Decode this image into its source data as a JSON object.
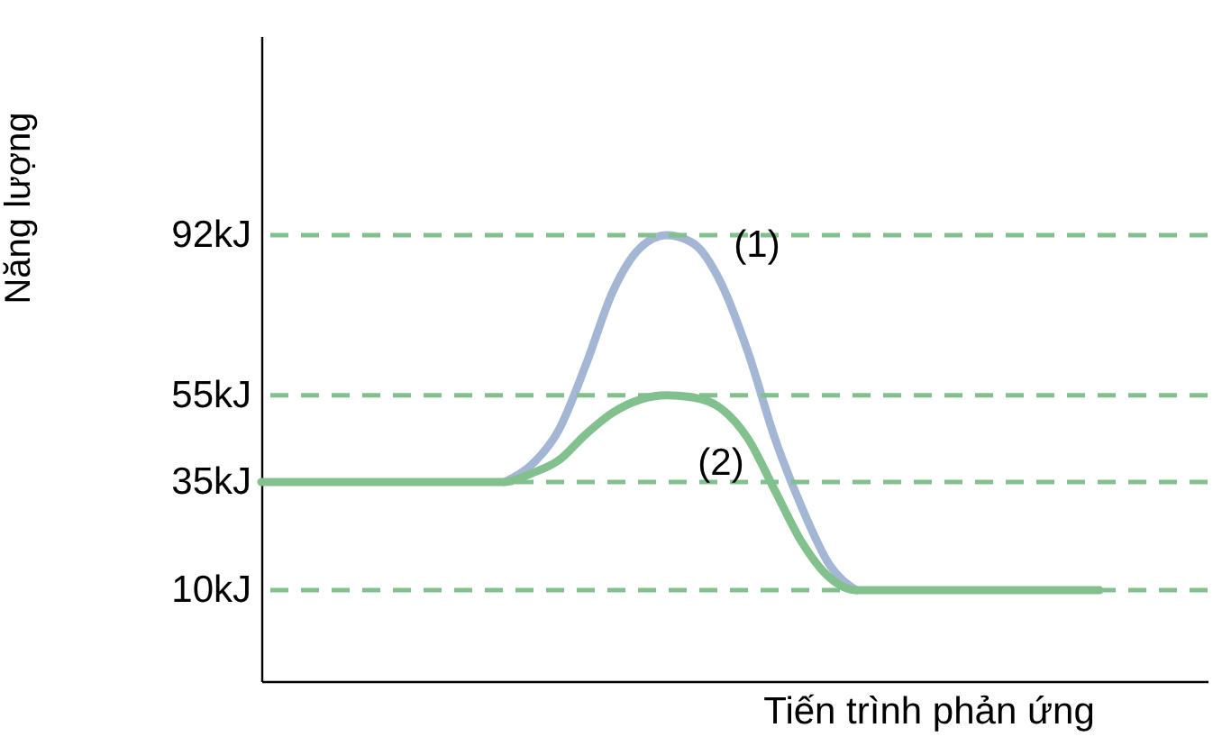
{
  "chart_data": {
    "type": "line",
    "xlabel": "Tiến trình phản ứng",
    "ylabel": "Năng lượng",
    "categories": [
      null,
      null,
      null,
      null,
      null,
      null,
      null,
      null,
      null,
      null,
      null,
      null,
      null,
      null,
      null,
      null,
      null,
      null,
      null,
      null,
      null,
      null,
      null,
      null,
      null,
      null,
      null,
      null,
      null,
      null,
      null,
      null,
      null,
      null,
      null,
      null
    ],
    "series": [
      {
        "name": "(1)",
        "color": "#a3b6d3",
        "values": [
          null,
          null,
          null,
          null,
          null,
          null,
          null,
          null,
          null,
          35,
          39,
          47,
          62,
          79,
          89,
          92,
          90,
          81,
          65,
          45,
          29,
          16,
          10,
          null,
          null,
          null,
          null,
          null,
          null,
          null,
          null,
          null,
          null,
          null,
          null,
          null
        ]
      },
      {
        "name": "(2)",
        "color": "#82c08e",
        "values": [
          35,
          35,
          35,
          35,
          35,
          35,
          35,
          35,
          35,
          35,
          37,
          40,
          46,
          51,
          54,
          55,
          54.5,
          52,
          45,
          33,
          21,
          13,
          10,
          10,
          10,
          10,
          10,
          10,
          10,
          10,
          10,
          10,
          null,
          null,
          null,
          null
        ]
      }
    ],
    "ylim": [
      -11,
      138
    ],
    "yticks": [
      {
        "value": 10,
        "label": "10kJ"
      },
      {
        "value": 35,
        "label": "35kJ"
      },
      {
        "value": 55,
        "label": "55kJ"
      },
      {
        "value": 92,
        "label": "92kJ"
      }
    ],
    "ref_lines": [
      {
        "axis": "y",
        "value": 92,
        "color": "#82c08e",
        "line_style": "dashed"
      },
      {
        "axis": "y",
        "value": 55,
        "color": "#82c08e",
        "line_style": "dashed"
      },
      {
        "axis": "y",
        "value": 35,
        "color": "#82c08e",
        "line_style": "dashed"
      },
      {
        "axis": "y",
        "value": 10,
        "color": "#82c08e",
        "line_style": "dashed"
      }
    ],
    "line_style": "solid",
    "marker": "none"
  }
}
